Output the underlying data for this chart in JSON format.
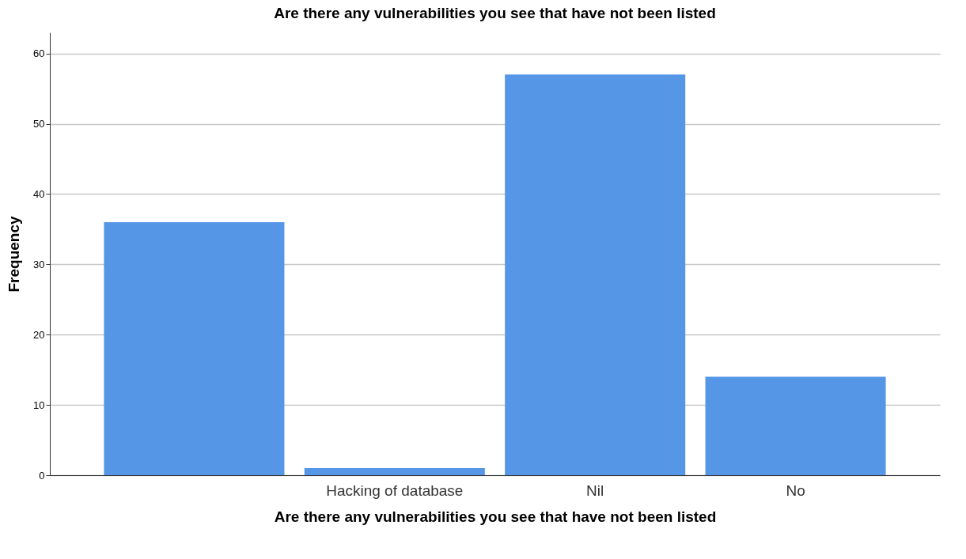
{
  "chart_data": {
    "type": "bar",
    "title": "Are there any vulnerabilities you see that have not been listed",
    "xlabel": "Are there any vulnerabilities you see that have not been listed",
    "ylabel": "Frequency",
    "categories": [
      null,
      "Hacking of database",
      "Nil",
      "No"
    ],
    "values": [
      36,
      1,
      57,
      14
    ],
    "color": "#5596e6",
    "ylim": [
      0,
      63
    ],
    "yticks": [
      0,
      10,
      20,
      30,
      40,
      50,
      60
    ],
    "grid": "y"
  }
}
